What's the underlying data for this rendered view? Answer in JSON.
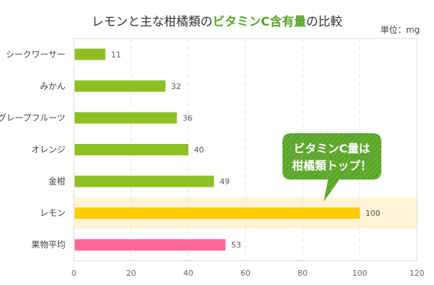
{
  "chart_data": {
    "type": "bar",
    "orientation": "horizontal",
    "title_parts": [
      "レモンと主な柑橘類の",
      "ビタミンC含有量",
      "の比較"
    ],
    "unit_label": "単位：mg",
    "categories": [
      "シークワーサー",
      "みかん",
      "グレープフルーツ",
      "オレンジ",
      "金柑",
      "レモン",
      "果物平均"
    ],
    "values": [
      11,
      32,
      36,
      40,
      49,
      100,
      53
    ],
    "bar_colors": [
      "#8fc023",
      "#8fc023",
      "#8fc023",
      "#8fc023",
      "#8fc023",
      "#ffcc00",
      "#ff6699"
    ],
    "highlight_category": "レモン",
    "highlight_color": "#fff5d6",
    "xlim": [
      0,
      120
    ],
    "x_ticks": [
      0,
      20,
      40,
      60,
      80,
      100,
      120
    ],
    "grid": true,
    "annotation": {
      "lines": [
        "ビタミンC量は",
        "柑橘類トップ！"
      ],
      "target_category": "レモン",
      "color": "#5aa52a"
    },
    "colors": {
      "title_highlight": "#5aa52a",
      "axis": "#dddddd",
      "grid": "#e2e2e2"
    }
  }
}
